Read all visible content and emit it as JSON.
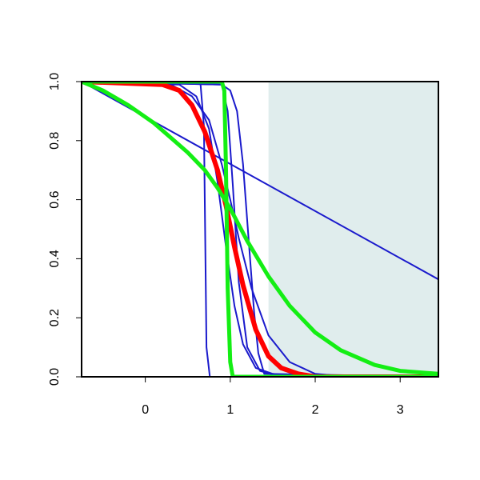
{
  "chart_data": {
    "type": "line",
    "title": "",
    "xlabel": "",
    "ylabel": "",
    "xlim": [
      -0.75,
      3.45
    ],
    "ylim": [
      0,
      1
    ],
    "x_ticks": [
      0,
      1,
      2,
      3
    ],
    "y_ticks": [
      0.0,
      0.2,
      0.4,
      0.6,
      0.8,
      1.0
    ],
    "x_tick_labels": [
      "0",
      "1",
      "2",
      "3"
    ],
    "y_tick_labels": [
      "0.0",
      "0.2",
      "0.4",
      "0.6",
      "0.8",
      "1.0"
    ],
    "grid": false,
    "legend": "none",
    "shaded_region": {
      "x_start": 1.45,
      "x_end": 3.45,
      "color": "#e0eded"
    },
    "colors": {
      "blue": "#1a1acc",
      "red": "#ff0000",
      "green": "#14ee14"
    },
    "series": [
      {
        "color": "blue",
        "width": 2,
        "x": [
          -0.75,
          3.45
        ],
        "y": [
          1.0,
          0.33
        ]
      },
      {
        "color": "blue",
        "width": 2,
        "x": [
          -0.75,
          0.6,
          0.65,
          0.69,
          0.72,
          0.76,
          3.45
        ],
        "y": [
          1.0,
          1.0,
          0.99,
          0.85,
          0.1,
          0.0,
          0.0
        ]
      },
      {
        "color": "blue",
        "width": 2,
        "x": [
          -0.75,
          0.4,
          0.6,
          0.75,
          0.85,
          0.95,
          1.05,
          1.15,
          1.3,
          1.5,
          1.8,
          3.45
        ],
        "y": [
          1.0,
          0.99,
          0.95,
          0.84,
          0.66,
          0.44,
          0.24,
          0.11,
          0.03,
          0.01,
          0.0,
          0.0
        ]
      },
      {
        "color": "blue",
        "width": 2,
        "x": [
          -0.75,
          0.3,
          0.55,
          0.75,
          0.9,
          1.0,
          1.1,
          1.25,
          1.45,
          1.7,
          2.0,
          2.4,
          3.45
        ],
        "y": [
          1.0,
          0.99,
          0.95,
          0.87,
          0.72,
          0.6,
          0.47,
          0.3,
          0.14,
          0.05,
          0.01,
          0.0,
          0.0
        ]
      },
      {
        "color": "blue",
        "width": 2,
        "x": [
          -0.75,
          0.9,
          0.97,
          1.03,
          1.1,
          1.2,
          1.35,
          1.6,
          3.45
        ],
        "y": [
          1.0,
          0.99,
          0.9,
          0.65,
          0.32,
          0.1,
          0.02,
          0.0,
          0.0
        ]
      },
      {
        "color": "blue",
        "width": 2,
        "x": [
          -0.75,
          0.9,
          1.0,
          1.08,
          1.15,
          1.22,
          1.28,
          1.33,
          1.4,
          3.45
        ],
        "y": [
          1.0,
          0.99,
          0.97,
          0.9,
          0.72,
          0.45,
          0.22,
          0.08,
          0.01,
          0.0
        ]
      },
      {
        "color": "red",
        "width": 6,
        "x": [
          -0.75,
          0.2,
          0.4,
          0.55,
          0.7,
          0.85,
          0.95,
          1.05,
          1.15,
          1.3,
          1.45,
          1.6,
          1.8,
          2.0,
          3.45
        ],
        "y": [
          1.0,
          0.99,
          0.97,
          0.92,
          0.83,
          0.7,
          0.58,
          0.44,
          0.31,
          0.16,
          0.07,
          0.03,
          0.01,
          0.0,
          0.0
        ]
      },
      {
        "color": "green",
        "width": 5,
        "x": [
          -0.75,
          0.9,
          0.93,
          0.95,
          0.97,
          1.0,
          1.03,
          1.1,
          3.45
        ],
        "y": [
          1.0,
          1.0,
          0.97,
          0.7,
          0.3,
          0.05,
          0.0,
          0.0,
          0.0
        ]
      },
      {
        "color": "green",
        "width": 5,
        "x": [
          -0.75,
          -0.5,
          -0.2,
          0.1,
          0.3,
          0.5,
          0.7,
          0.85,
          1.0,
          1.2,
          1.45,
          1.7,
          2.0,
          2.3,
          2.7,
          3.0,
          3.45
        ],
        "y": [
          1.0,
          0.97,
          0.92,
          0.86,
          0.81,
          0.76,
          0.7,
          0.64,
          0.57,
          0.46,
          0.34,
          0.24,
          0.15,
          0.09,
          0.04,
          0.02,
          0.01
        ]
      }
    ]
  }
}
